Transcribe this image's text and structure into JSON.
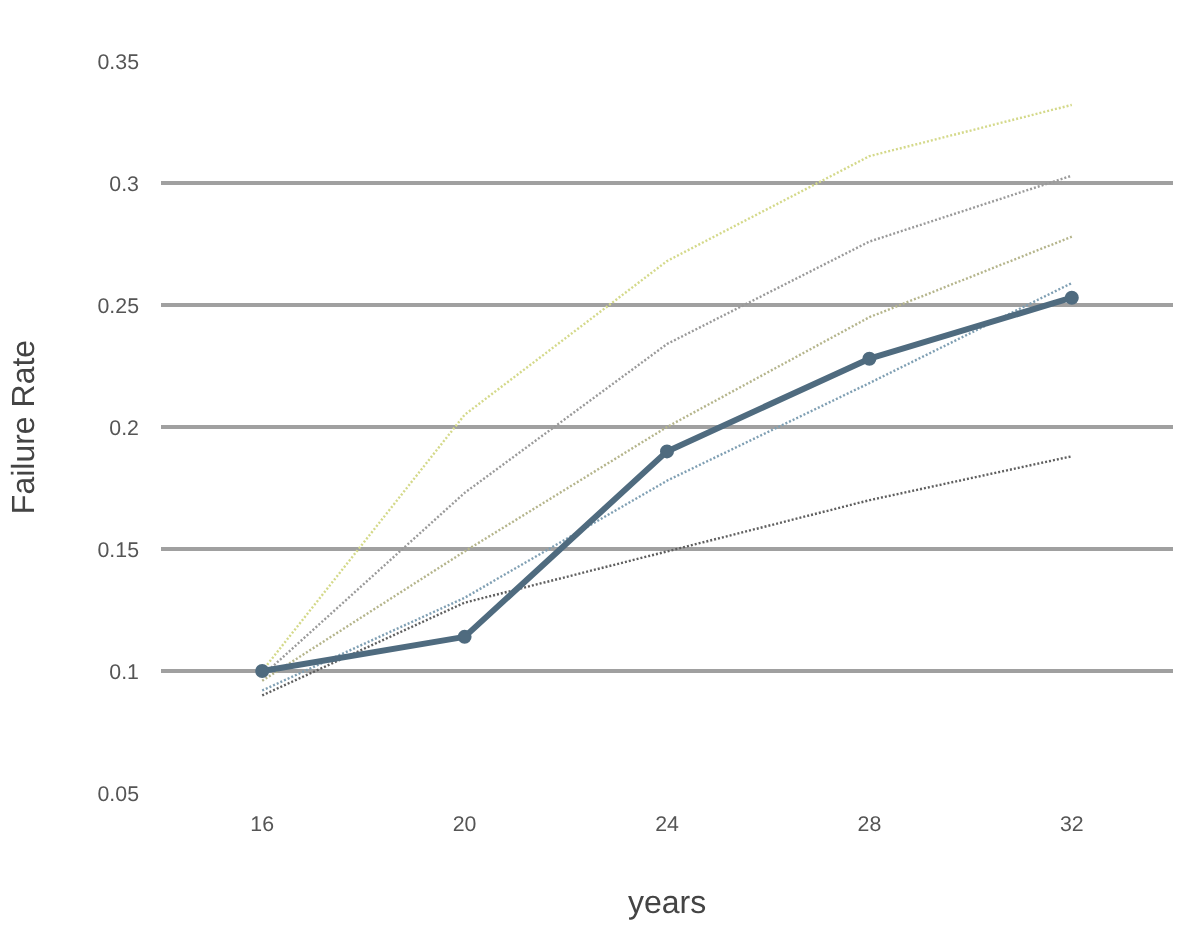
{
  "chart_data": {
    "type": "line",
    "xlabel": "years",
    "ylabel": "Failure Rate",
    "x": [
      16,
      20,
      24,
      28,
      32
    ],
    "series": [
      {
        "color": "#d4d98a",
        "values": [
          0.1,
          0.205,
          0.268,
          0.311,
          0.332
        ],
        "line_style": "dotted",
        "marker": "none"
      },
      {
        "color": "#9a9a9a",
        "values": [
          0.098,
          0.173,
          0.234,
          0.276,
          0.303
        ],
        "line_style": "dotted",
        "marker": "none"
      },
      {
        "color": "#b5b58c",
        "values": [
          0.096,
          0.149,
          0.2,
          0.245,
          0.278
        ],
        "line_style": "dotted",
        "marker": "none"
      },
      {
        "color": "#7f9fb3",
        "values": [
          0.092,
          0.13,
          0.178,
          0.218,
          0.259
        ],
        "line_style": "dotted",
        "marker": "none"
      },
      {
        "color": "#5f5f5f",
        "values": [
          0.09,
          0.128,
          0.149,
          0.17,
          0.188
        ],
        "line_style": "dotted",
        "marker": "none"
      },
      {
        "color": "#4f6b7f",
        "values": [
          0.1,
          0.114,
          0.19,
          0.228,
          0.253
        ],
        "line_style": "solid",
        "marker": "circle"
      }
    ],
    "xlim": [
      14,
      34
    ],
    "ylim": [
      0.05,
      0.35
    ],
    "xticks": [
      16,
      20,
      24,
      28,
      32
    ],
    "yticks": [
      0.05,
      0.1,
      0.15,
      0.2,
      0.25,
      0.3,
      0.35
    ],
    "grid": "y"
  }
}
